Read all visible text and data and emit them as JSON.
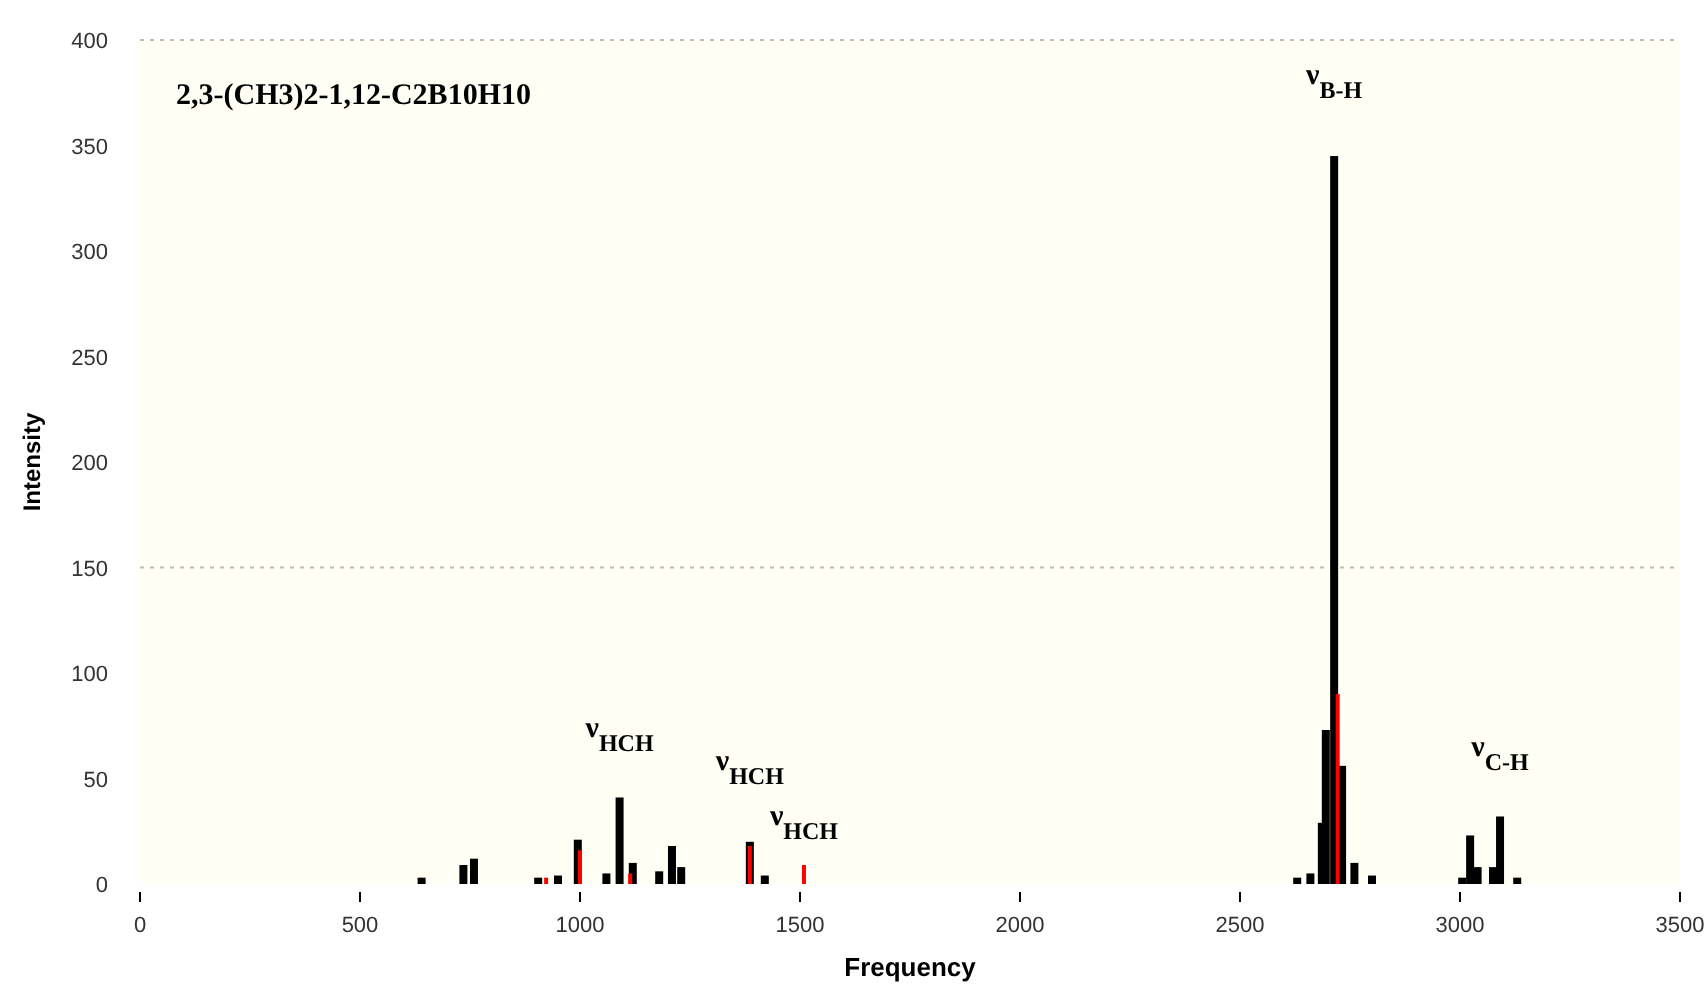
{
  "chart_data": {
    "type": "bar",
    "title": "2,3-(CH3)2-1,12-C2B10H10",
    "xlabel": "Frequency",
    "ylabel": "Intensity",
    "xlim": [
      0,
      3500
    ],
    "xticks": [
      0,
      500,
      1000,
      1500,
      2000,
      2500,
      3000,
      3500
    ],
    "ylim": [
      0,
      400
    ],
    "yticks": [
      0,
      50,
      100,
      150,
      200,
      250,
      300,
      350,
      400
    ],
    "series": [
      {
        "color": "#000000",
        "x": [
          640,
          735,
          759,
          905,
          950,
          995,
          1060,
          1090,
          1120,
          1180,
          1209,
          1230,
          1386,
          1420,
          2630,
          2660,
          2686,
          2695,
          2714,
          2732,
          2760,
          2800,
          3005,
          3023,
          3040,
          3075,
          3091,
          3130
        ],
        "values": [
          3,
          9,
          12,
          3,
          4,
          21,
          5,
          41,
          10,
          6,
          18,
          8,
          20,
          4,
          3,
          5,
          29,
          73,
          345,
          56,
          10,
          4,
          3,
          23,
          8,
          8,
          32,
          3
        ]
      },
      {
        "color": "#ff0000",
        "x": [
          923,
          1000,
          1114,
          1386,
          1509,
          2722
        ],
        "values": [
          3,
          16,
          5,
          18,
          9,
          90
        ]
      }
    ],
    "ref_lines": [
      {
        "axis": "y",
        "value": 150,
        "color": "#bbbbbb",
        "line_style": "dotted"
      }
    ],
    "annotations": [
      {
        "text": "ν$_{HCH}$",
        "x": 1090,
        "y": 41
      },
      {
        "text": "ν$_{HCH}$",
        "x": 1386,
        "y": 20
      },
      {
        "text": "ν$_{HCH}$",
        "x": 1509,
        "y": 9
      },
      {
        "text": "ν$_{B-H}$",
        "x": 2714,
        "y": 345
      },
      {
        "text": "ν$_{C-H}$",
        "x": 3091,
        "y": 32
      }
    ]
  }
}
